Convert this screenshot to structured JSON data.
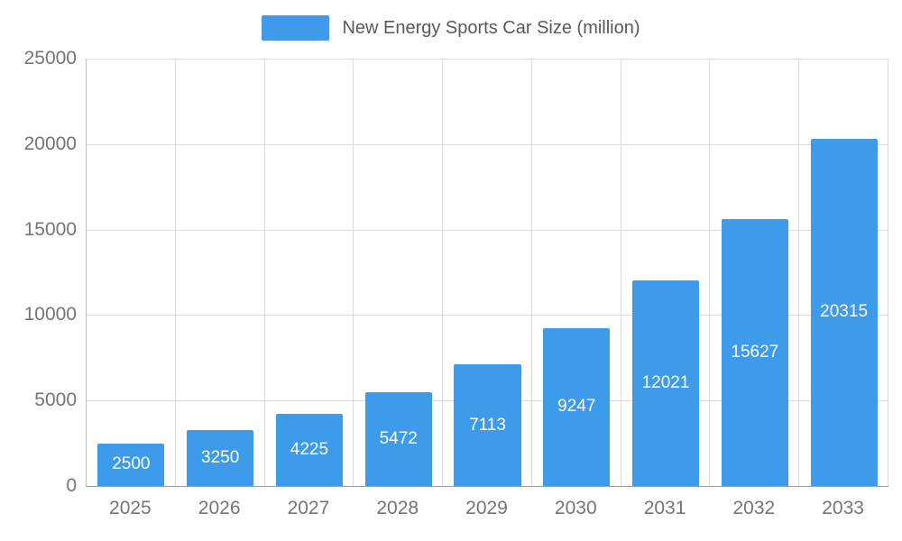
{
  "chart_data": {
    "type": "bar",
    "title": "New Energy Sports Car Size (million)",
    "legend": "New Energy Sports Car Size (million)",
    "legend_position": "top-center",
    "categories": [
      "2025",
      "2026",
      "2027",
      "2028",
      "2029",
      "2030",
      "2031",
      "2032",
      "2033"
    ],
    "values": [
      2500,
      3250,
      4225,
      5472,
      7113,
      9247,
      12021,
      15627,
      20315
    ],
    "xlabel": "",
    "ylabel": "",
    "ylim": [
      0,
      25000
    ],
    "y_ticks": [
      0,
      5000,
      10000,
      15000,
      20000,
      25000
    ],
    "grid": true,
    "bar_color": "#3d9be9",
    "bar_label_color": "#ffffff",
    "axis_text_color": "#757575",
    "grid_color": "#dcdcdc"
  }
}
